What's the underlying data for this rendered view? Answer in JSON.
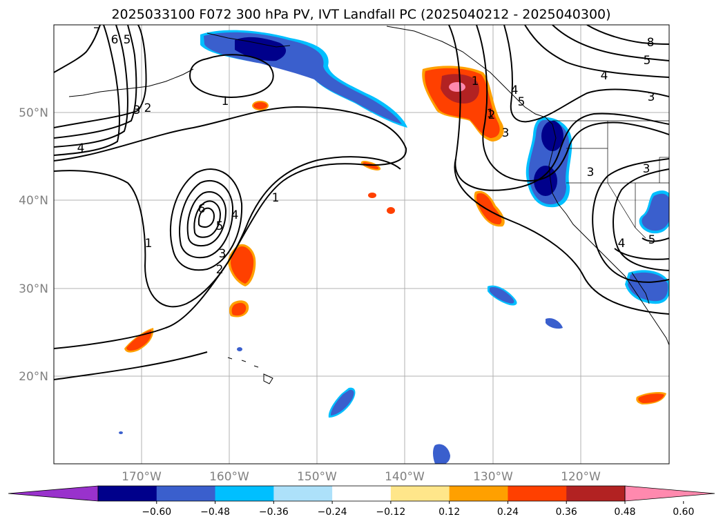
{
  "title": "2025033100 F072 300 hPa PV, IVT Landfall PC (2025040212 - 2025040300)",
  "map": {
    "projection": "PlateCarree",
    "extent": {
      "lon": [
        -180,
        -110
      ],
      "lat": [
        10,
        60
      ]
    },
    "lat_labels": [
      "50°N",
      "40°N",
      "30°N",
      "20°N"
    ],
    "lon_labels": [
      "170°W",
      "160°W",
      "150°W",
      "140°W",
      "130°W",
      "120°W"
    ],
    "gridlines": true,
    "contour_field": "300 hPa PV",
    "contour_labels": [
      "7",
      "6",
      "5",
      "4",
      "3",
      "2",
      "1",
      "1",
      "1",
      "1",
      "2",
      "3",
      "4",
      "5",
      "6",
      "1",
      "2",
      "3",
      "4",
      "5",
      "8",
      "5",
      "4",
      "3",
      "3",
      "3",
      "5",
      "4"
    ],
    "fill_field": "IVT Landfall PC",
    "colors": {
      "pos_low": "#FFE68A",
      "pos_mid": "#FFA000",
      "pos_high": "#FF4000",
      "pos_higher": "#B22222",
      "pos_max": "#FF89AE",
      "neg_low": "#00BFFF",
      "neg_mid": "#3A5FCD",
      "neg_high": "#00008B"
    }
  },
  "colorbar": {
    "ticks": [
      "−0.60",
      "−0.48",
      "−0.36",
      "−0.24",
      "−0.12",
      "0.12",
      "0.24",
      "0.36",
      "0.48",
      "0.60"
    ],
    "colors": [
      "#9932CC",
      "#00008B",
      "#3A5FCD",
      "#00BFFF",
      "#ADE1FA",
      "#FFFFFF",
      "#FFE68A",
      "#FFA000",
      "#FF4000",
      "#B22222",
      "#FF89AE"
    ],
    "extend": "both"
  }
}
